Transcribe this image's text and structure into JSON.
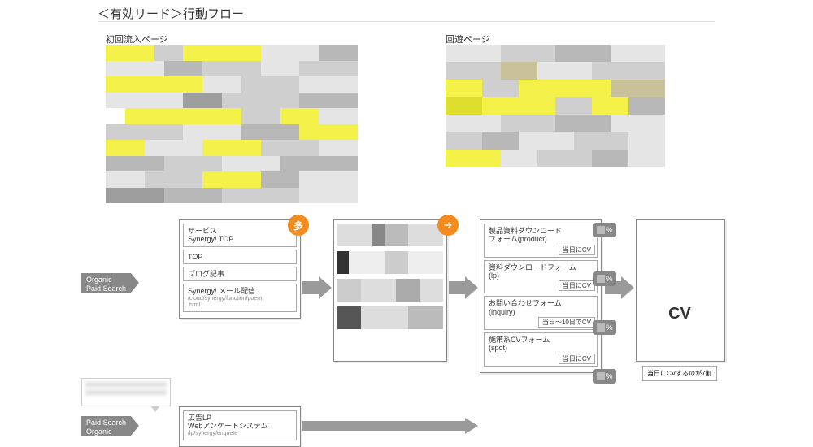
{
  "title": "＜有効リード＞行動フロー",
  "sections": {
    "initial": "初回流入ページ",
    "browse": "回遊ページ"
  },
  "mosaic_palette": {
    "y": "#f4f24a",
    "dy": "#dede2e",
    "g1": "#e5e5e5",
    "g2": "#cfcfcf",
    "g3": "#b8b8b8",
    "g4": "#9e9e9e",
    "w": "#ffffff",
    "t": "#c9c19a"
  },
  "mosaic_left_rows": [
    [
      [
        "y",
        5
      ],
      [
        "g2",
        3
      ],
      [
        "y",
        8
      ],
      [
        "g1",
        6
      ],
      [
        "g3",
        4
      ]
    ],
    [
      [
        "g1",
        6
      ],
      [
        "g3",
        4
      ],
      [
        "g2",
        6
      ],
      [
        "g1",
        4
      ],
      [
        "g2",
        6
      ]
    ],
    [
      [
        "y",
        10
      ],
      [
        "g1",
        4
      ],
      [
        "g2",
        6
      ],
      [
        "g1",
        6
      ]
    ],
    [
      [
        "g1",
        8
      ],
      [
        "g4",
        4
      ],
      [
        "g2",
        8
      ],
      [
        "g3",
        6
      ]
    ],
    [
      [
        "w",
        2
      ],
      [
        "y",
        12
      ],
      [
        "g2",
        4
      ],
      [
        "y",
        4
      ],
      [
        "g1",
        4
      ]
    ],
    [
      [
        "g2",
        8
      ],
      [
        "g1",
        6
      ],
      [
        "g3",
        6
      ],
      [
        "y",
        6
      ]
    ],
    [
      [
        "y",
        4
      ],
      [
        "g1",
        6
      ],
      [
        "y",
        6
      ],
      [
        "g2",
        6
      ],
      [
        "g1",
        4
      ]
    ],
    [
      [
        "g3",
        6
      ],
      [
        "g2",
        6
      ],
      [
        "g1",
        6
      ],
      [
        "g3",
        8
      ]
    ],
    [
      [
        "g1",
        4
      ],
      [
        "g2",
        6
      ],
      [
        "y",
        6
      ],
      [
        "g3",
        4
      ],
      [
        "g1",
        6
      ]
    ],
    [
      [
        "g4",
        6
      ],
      [
        "g3",
        6
      ],
      [
        "g2",
        8
      ],
      [
        "g1",
        6
      ]
    ]
  ],
  "mosaic_right_rows": [
    [
      [
        "g1",
        6
      ],
      [
        "g2",
        6
      ],
      [
        "g3",
        6
      ],
      [
        "g1",
        6
      ]
    ],
    [
      [
        "g2",
        6
      ],
      [
        "t",
        4
      ],
      [
        "g1",
        6
      ],
      [
        "g2",
        8
      ]
    ],
    [
      [
        "y",
        4
      ],
      [
        "g2",
        4
      ],
      [
        "y",
        10
      ],
      [
        "t",
        6
      ]
    ],
    [
      [
        "dy",
        4
      ],
      [
        "y",
        8
      ],
      [
        "g2",
        4
      ],
      [
        "y",
        4
      ],
      [
        "g3",
        4
      ]
    ],
    [
      [
        "g1",
        6
      ],
      [
        "g2",
        6
      ],
      [
        "g3",
        6
      ],
      [
        "g1",
        6
      ]
    ],
    [
      [
        "g2",
        4
      ],
      [
        "g3",
        4
      ],
      [
        "g1",
        6
      ],
      [
        "g2",
        6
      ],
      [
        "g1",
        4
      ]
    ],
    [
      [
        "y",
        6
      ],
      [
        "g1",
        4
      ],
      [
        "g2",
        6
      ],
      [
        "g3",
        4
      ],
      [
        "g1",
        4
      ]
    ]
  ],
  "source_labels": {
    "top": "Organic\nPaid Search",
    "bottom": "Paid Search\nOrganic"
  },
  "col1_items": [
    {
      "label": "サービス\nSynergy! TOP"
    },
    {
      "label": "TOP"
    },
    {
      "label": "ブログ記事"
    },
    {
      "label": "Synergy! メール配信",
      "sub": "/cloud/synergy/function/poem\n.html"
    }
  ],
  "col1b_item": {
    "label": "広告LP\nWebアンケートシステム",
    "sub": "/lp/synergy/enquete"
  },
  "col2_rows": [
    [
      [
        "#ddd",
        3
      ],
      [
        "#888",
        1
      ],
      [
        "#bbb",
        2
      ],
      [
        "#ddd",
        3
      ]
    ],
    [
      [
        "#333",
        1
      ],
      [
        "#eee",
        3
      ],
      [
        "#ccc",
        2
      ],
      [
        "#eee",
        3
      ]
    ],
    [
      [
        "#ccc",
        2
      ],
      [
        "#ddd",
        3
      ],
      [
        "#aaa",
        2
      ],
      [
        "#ddd",
        2
      ]
    ],
    [
      [
        "#555",
        2
      ],
      [
        "#ddd",
        4
      ],
      [
        "#bbb",
        3
      ]
    ]
  ],
  "col3_items": [
    {
      "label": "製品資料ダウンロード\nフォーム(product)",
      "cv": "当日にCV"
    },
    {
      "label": "資料ダウンロードフォーム\n(lp)",
      "cv": "当日にCV"
    },
    {
      "label": "お問い合わせフォーム\n(inquiry)",
      "cv": "当日〜10日でCV"
    },
    {
      "label": "施策系CVフォーム\n(spot)",
      "cv": "当日にCV"
    }
  ],
  "badge1": "多",
  "pct_suffix": "%",
  "cv_label": "CV",
  "cv_note": "当日にCVするのが7割",
  "arrow_color": "#9a9a9a",
  "accent": "#f28c1e"
}
